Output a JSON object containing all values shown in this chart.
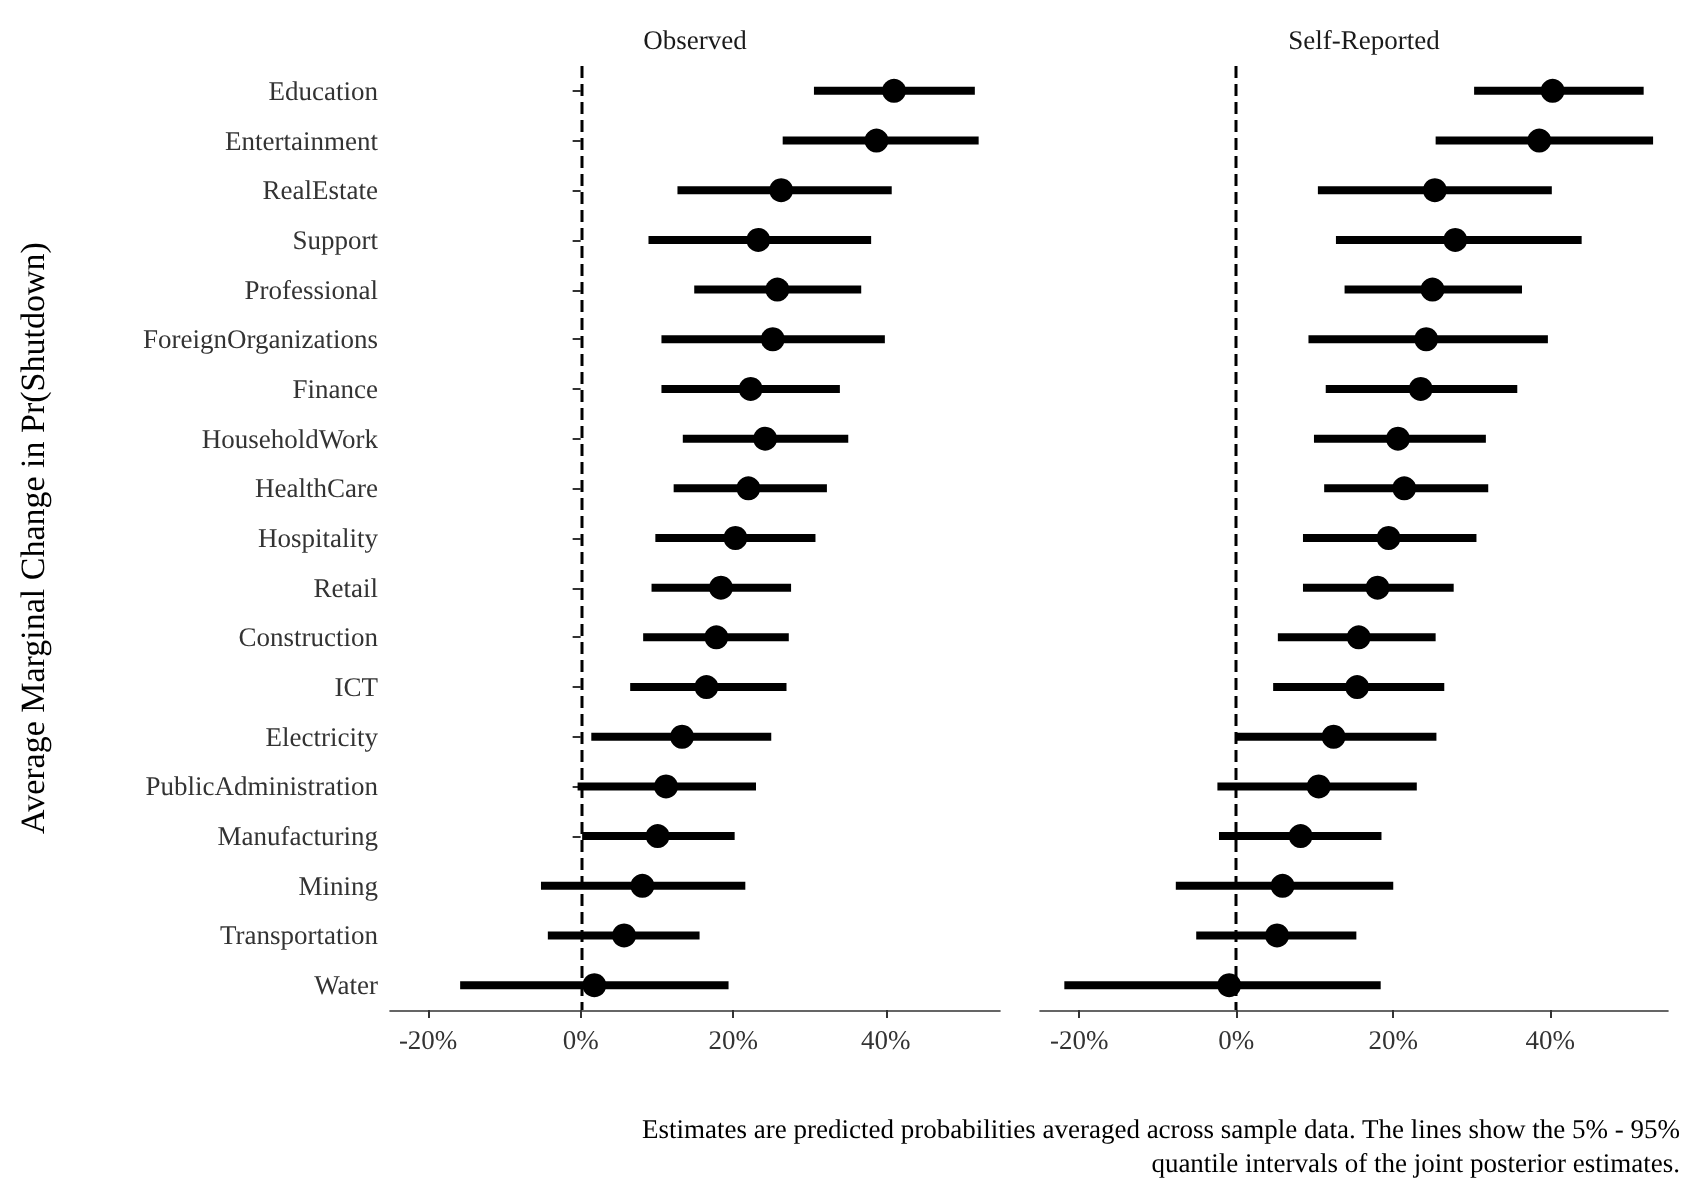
{
  "chart_data": [
    {
      "type": "scatter",
      "title": "Observed",
      "ylabel": "Average Marginal Change in Pr(Shutdown)",
      "orientation": "horizontal",
      "categories": [
        "Education",
        "Entertainment",
        "RealEstate",
        "Support",
        "Professional",
        "ForeignOrganizations",
        "Finance",
        "HouseholdWork",
        "HealthCare",
        "Hospitality",
        "Retail",
        "Construction",
        "ICT",
        "Electricity",
        "PublicAdministration",
        "Manufacturing",
        "Mining",
        "Transportation",
        "Water"
      ],
      "series": [
        {
          "color": "#000000",
          "values": [
            41.1,
            38.8,
            26.3,
            23.3,
            25.8,
            25.2,
            22.3,
            24.2,
            22.0,
            20.3,
            18.4,
            17.8,
            16.5,
            13.3,
            11.2,
            10.1,
            8.1,
            5.7,
            1.8
          ],
          "errors": [
            [
              30.6,
              51.7
            ],
            [
              26.5,
              52.2
            ],
            [
              12.7,
              40.8
            ],
            [
              8.9,
              38.1
            ],
            [
              14.9,
              36.8
            ],
            [
              10.6,
              39.9
            ],
            [
              10.6,
              34.0
            ],
            [
              13.4,
              35.1
            ],
            [
              12.2,
              32.3
            ],
            [
              9.8,
              30.8
            ],
            [
              9.3,
              27.6
            ],
            [
              8.2,
              27.3
            ],
            [
              6.5,
              27.0
            ],
            [
              1.4,
              25.0
            ],
            [
              -0.4,
              23.0
            ],
            [
              0.2,
              20.2
            ],
            [
              -5.2,
              21.6
            ],
            [
              -4.3,
              15.6
            ],
            [
              -15.8,
              19.4
            ]
          ]
        }
      ],
      "xlim": [
        -25,
        55
      ],
      "xticks": [
        {
          "value": -20,
          "label": "-20%"
        },
        {
          "value": 0,
          "label": "0%"
        },
        {
          "value": 20,
          "label": "20%"
        },
        {
          "value": 40,
          "label": "40%"
        }
      ],
      "ref_lines": [
        {
          "axis": "x",
          "value": 0,
          "color": "#000000",
          "line_style": "dashed"
        }
      ],
      "marker": "circle",
      "grid": false
    },
    {
      "type": "scatter",
      "title": "Self-Reported",
      "orientation": "horizontal",
      "tick_labels": "x",
      "categories": [
        null,
        null,
        null,
        null,
        null,
        null,
        null,
        null,
        null,
        null,
        null,
        null,
        null,
        null,
        null,
        null,
        null,
        null,
        null
      ],
      "series": [
        {
          "color": "#000000",
          "values": [
            40.3,
            38.6,
            25.3,
            27.9,
            25.0,
            24.2,
            23.5,
            20.6,
            21.4,
            19.4,
            18.0,
            15.6,
            15.4,
            12.4,
            10.5,
            8.2,
            5.9,
            5.2,
            -0.9
          ],
          "errors": [
            [
              30.3,
              51.9
            ],
            [
              25.4,
              53.1
            ],
            [
              10.4,
              40.2
            ],
            [
              12.7,
              44.0
            ],
            [
              13.8,
              36.4
            ],
            [
              9.2,
              39.7
            ],
            [
              11.4,
              35.8
            ],
            [
              9.9,
              31.8
            ],
            [
              11.2,
              32.1
            ],
            [
              8.5,
              30.6
            ],
            [
              8.5,
              27.7
            ],
            [
              5.3,
              25.4
            ],
            [
              4.7,
              26.5
            ],
            [
              0.0,
              25.5
            ],
            [
              -2.4,
              23.0
            ],
            [
              -2.2,
              18.5
            ],
            [
              -7.7,
              20.0
            ],
            [
              -5.1,
              15.3
            ],
            [
              -21.9,
              18.4
            ]
          ]
        }
      ],
      "xlim": [
        -25,
        55
      ],
      "xticks": [
        {
          "value": -20,
          "label": "-20%"
        },
        {
          "value": 0,
          "label": "0%"
        },
        {
          "value": 20,
          "label": "20%"
        },
        {
          "value": 40,
          "label": "40%"
        }
      ],
      "ref_lines": [
        {
          "axis": "x",
          "value": 0,
          "color": "#000000",
          "line_style": "dashed"
        }
      ],
      "marker": "circle",
      "grid": false,
      "annotations": [
        "Estimates are predicted probabilities averaged across sample data. The lines show the 5% - 95%\nquantile intervals of the joint posterior estimates."
      ]
    }
  ]
}
